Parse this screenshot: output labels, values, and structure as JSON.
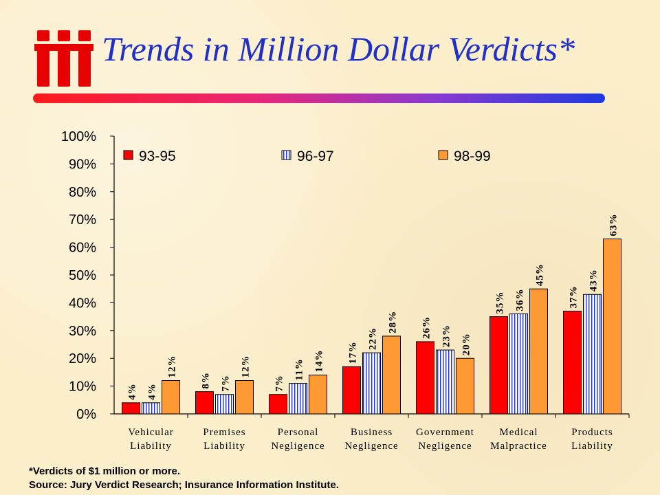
{
  "title": "Trends in Million Dollar Verdicts*",
  "footnote": {
    "line1": "*Verdicts of $1 million or more.",
    "line2": "Source: Jury Verdict Research; Insurance Information Institute."
  },
  "colors": {
    "title": "#1f2fc8",
    "series_93_95": "#ff0000",
    "series_96_97": "#ffffff",
    "series_98_99": "#ff9933"
  },
  "chart_data": {
    "type": "bar",
    "categories": [
      [
        "Vehicular",
        "Liability"
      ],
      [
        "Premises",
        "Liability"
      ],
      [
        "Personal",
        "Negligence"
      ],
      [
        "Business",
        "Negligence"
      ],
      [
        "Government",
        "Negligence"
      ],
      [
        "Medical",
        "Malpractice"
      ],
      [
        "Products",
        "Liability"
      ]
    ],
    "series": [
      {
        "name": "93-95",
        "values": [
          4,
          8,
          7,
          17,
          26,
          35,
          37
        ],
        "labels": [
          "4%",
          "8%",
          "7%",
          "17%",
          "26%",
          "35%",
          "37%"
        ]
      },
      {
        "name": "96-97",
        "values": [
          4,
          7,
          11,
          22,
          23,
          36,
          43
        ],
        "labels": [
          "4%",
          "7%",
          "11%",
          "22%",
          "23%",
          "36%",
          "43%"
        ]
      },
      {
        "name": "98-99",
        "values": [
          12,
          12,
          14,
          28,
          20,
          45,
          63
        ],
        "labels": [
          "12%",
          "12%",
          "14%",
          "28%",
          "20%",
          "45%",
          "63%"
        ]
      }
    ],
    "yticks": [
      "0%",
      "10%",
      "20%",
      "30%",
      "40%",
      "50%",
      "60%",
      "70%",
      "80%",
      "90%",
      "100%"
    ],
    "ylim": [
      0,
      100
    ],
    "legend": "top",
    "grid": false
  }
}
